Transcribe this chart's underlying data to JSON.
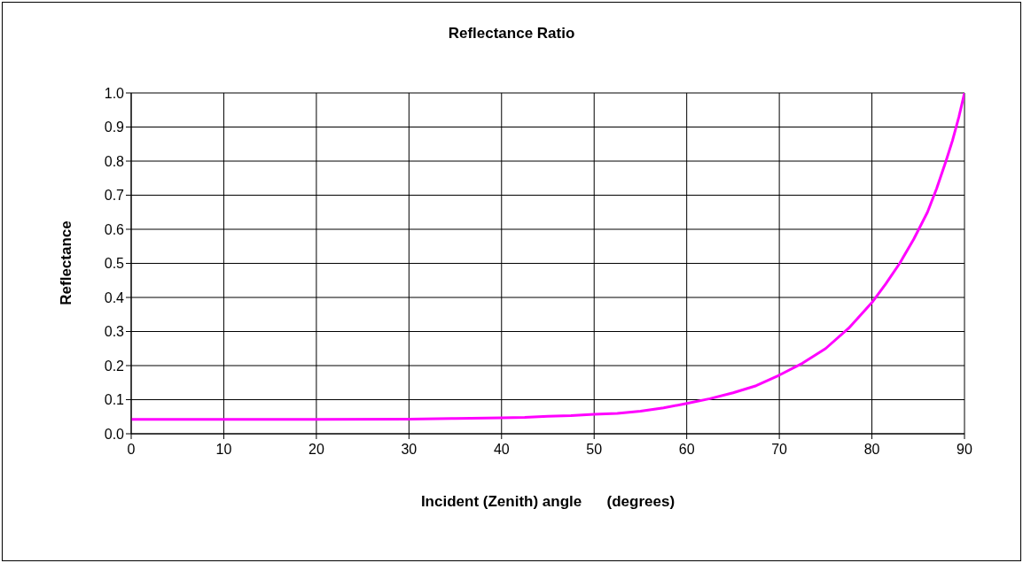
{
  "chart_data": {
    "type": "line",
    "title": "Reflectance Ratio",
    "xlabel": "Incident (Zenith) angle      (degrees)",
    "ylabel": "Reflectance",
    "x": [
      0,
      10,
      20,
      30,
      35,
      40,
      42.5,
      45,
      47.5,
      50,
      52.5,
      55,
      57.5,
      60,
      62.5,
      65,
      67.5,
      70,
      72.5,
      75,
      77.5,
      80,
      81.5,
      83,
      84.5,
      86,
      87,
      88,
      88.7,
      89.4,
      90
    ],
    "series": [
      {
        "color": "#ff00ff",
        "values": [
          0.042,
          0.042,
          0.042,
          0.043,
          0.045,
          0.047,
          0.048,
          0.051,
          0.053,
          0.057,
          0.06,
          0.066,
          0.076,
          0.089,
          0.103,
          0.12,
          0.141,
          0.172,
          0.207,
          0.25,
          0.31,
          0.385,
          0.44,
          0.5,
          0.57,
          0.65,
          0.72,
          0.8,
          0.86,
          0.93,
          1.0
        ]
      }
    ],
    "xlim": [
      0,
      90
    ],
    "xticks": [
      0,
      10,
      20,
      30,
      40,
      50,
      60,
      70,
      80,
      90
    ],
    "ylim": [
      0,
      1
    ],
    "yticks": [
      {
        "value": 0,
        "label": "0.0"
      },
      0.1,
      0.2,
      0.3,
      0.4,
      0.5,
      0.6,
      0.7,
      0.8,
      0.9,
      {
        "value": 1,
        "label": "1.0"
      }
    ],
    "grid": true,
    "marker": "none",
    "line_style": "solid"
  }
}
